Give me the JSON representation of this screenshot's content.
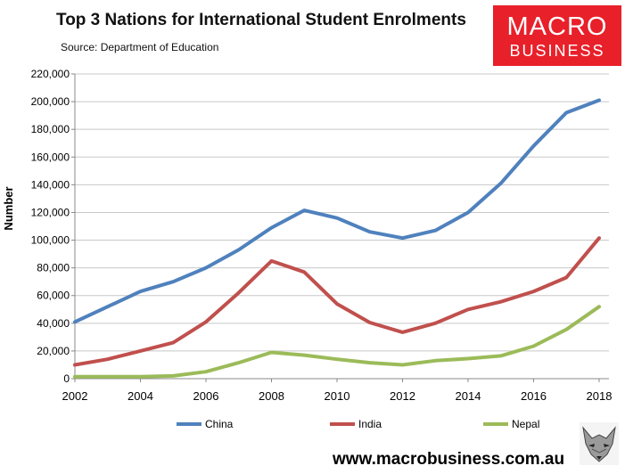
{
  "header": {
    "title": "Top 3 Nations for International Student Enrolments",
    "subtitle": "Source: Department of Education"
  },
  "logo": {
    "line1": "MACRO",
    "line2": "BUSINESS",
    "color": "#e8202a"
  },
  "footer": {
    "url": "www.macrobusiness.com.au",
    "fox_icon": "fox-logo-icon"
  },
  "chart_data": {
    "type": "line",
    "title": "Top 3 Nations for International Student Enrolments",
    "ylabel": "Number",
    "xlabel": "",
    "x": [
      2002,
      2003,
      2004,
      2005,
      2006,
      2007,
      2008,
      2009,
      2010,
      2011,
      2012,
      2013,
      2014,
      2015,
      2016,
      2017,
      2018
    ],
    "xticks": [
      "2002",
      "2004",
      "2006",
      "2008",
      "2010",
      "2012",
      "2014",
      "2016",
      "2018"
    ],
    "xlim": [
      2002,
      2018.3
    ],
    "ylim": [
      0,
      220000
    ],
    "yticks": [
      "0",
      "20,000",
      "40,000",
      "60,000",
      "80,000",
      "100,000",
      "120,000",
      "140,000",
      "160,000",
      "180,000",
      "200,000",
      "220,000"
    ],
    "grid": "horizontal",
    "legend": "bottom",
    "series": [
      {
        "name": "China",
        "color": "#4f81bd",
        "values": [
          41000,
          52000,
          63000,
          70000,
          80000,
          93000,
          109000,
          121500,
          116000,
          106000,
          101500,
          107000,
          120000,
          141000,
          168000,
          192000,
          201000
        ]
      },
      {
        "name": "India",
        "color": "#c0504d",
        "values": [
          10000,
          14000,
          20000,
          26000,
          41000,
          62000,
          85000,
          77000,
          54000,
          40500,
          33500,
          40000,
          50000,
          55500,
          63000,
          73000,
          101500
        ]
      },
      {
        "name": "Nepal",
        "color": "#9bbb59",
        "values": [
          1500,
          1500,
          1500,
          2000,
          5000,
          11500,
          19000,
          17000,
          14000,
          11500,
          10000,
          13000,
          14500,
          16500,
          23500,
          35500,
          52000
        ]
      }
    ]
  }
}
